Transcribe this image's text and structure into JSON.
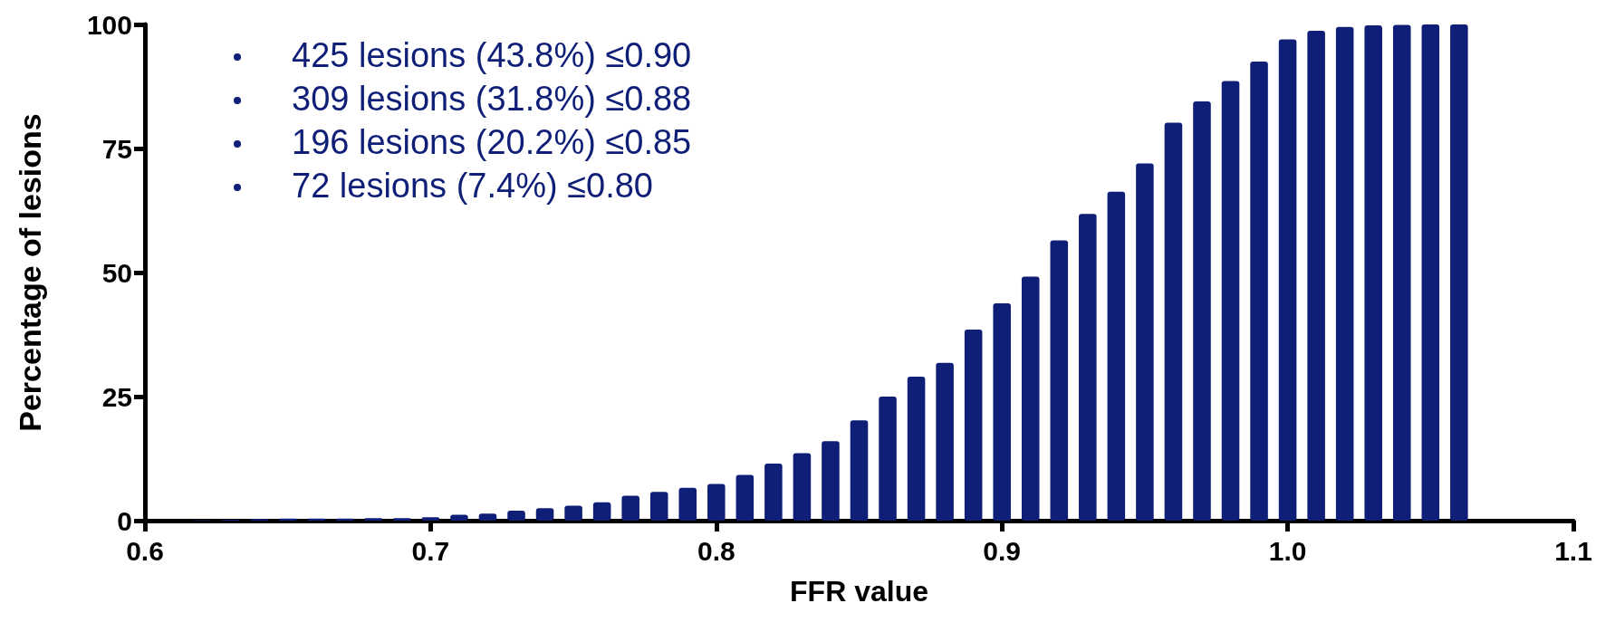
{
  "chart_data": {
    "type": "bar",
    "xlabel": "FFR value",
    "ylabel": "Percentage of lesions",
    "x": [
      0.62,
      0.63,
      0.64,
      0.65,
      0.66,
      0.67,
      0.68,
      0.69,
      0.7,
      0.71,
      0.72,
      0.73,
      0.74,
      0.75,
      0.76,
      0.77,
      0.78,
      0.79,
      0.8,
      0.81,
      0.82,
      0.83,
      0.84,
      0.85,
      0.86,
      0.87,
      0.88,
      0.89,
      0.9,
      0.91,
      0.92,
      0.93,
      0.94,
      0.95,
      0.96,
      0.97,
      0.98,
      0.99,
      1.0,
      1.01,
      1.02,
      1.03,
      1.04,
      1.05,
      1.06
    ],
    "values": [
      0.1,
      0.2,
      0.3,
      0.4,
      0.4,
      0.4,
      0.5,
      0.5,
      0.7,
      1.2,
      1.4,
      2,
      2.5,
      3,
      3.7,
      5,
      5.8,
      6.6,
      7.4,
      9.2,
      11.5,
      13.6,
      16,
      20.2,
      25,
      29,
      31.8,
      38.5,
      43.8,
      49.2,
      56.5,
      61.8,
      66.3,
      72,
      80.2,
      84.5,
      88.6,
      92.5,
      97,
      98.7,
      99.5,
      99.8,
      99.9,
      100,
      100
    ],
    "color": "#0f1f78",
    "xlim": [
      0.6,
      1.1
    ],
    "xticks": [
      0.6,
      0.7,
      0.8,
      0.9,
      {
        "value": 1,
        "label": "1.0"
      },
      1.1
    ],
    "ylim": [
      0,
      100
    ],
    "yticks": [
      0,
      25,
      50,
      75,
      100
    ],
    "annotations": [
      "425 lesions (43.8%) ≤0.90",
      "309 lesions (31.8%) ≤0.88",
      "196 lesions (20.2%) ≤0.85",
      "72 lesions (7.4%) ≤0.80"
    ]
  }
}
